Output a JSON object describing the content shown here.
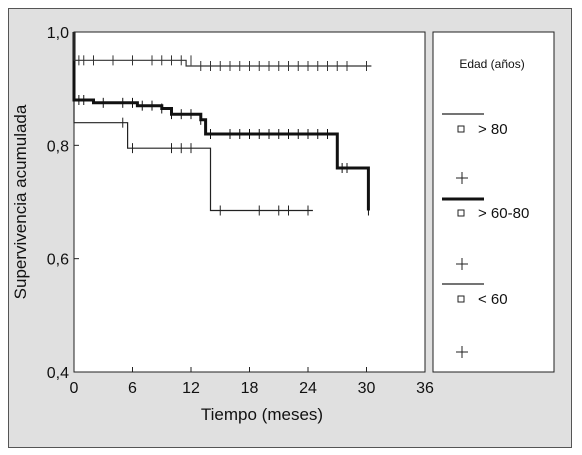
{
  "chart_data": {
    "type": "line",
    "subtype": "kaplan-meier step",
    "title": "",
    "xlabel": "Tiempo (meses)",
    "ylabel": "Supervivencia acumulada",
    "xlim": [
      0,
      36
    ],
    "ylim": [
      0.4,
      1.0
    ],
    "xticks": [
      "0",
      "6",
      "12",
      "18",
      "24",
      "30",
      "36"
    ],
    "yticks": [
      "0,4",
      "0,6",
      "0,8",
      "1,0"
    ],
    "grid": false,
    "legend_position": "right panel",
    "legend_title": "Edad (años)",
    "series": [
      {
        "name": "> 80",
        "color": "#222222",
        "line_weight": "thin",
        "steps": [
          [
            0,
            1.0
          ],
          [
            0,
            0.84
          ],
          [
            5.5,
            0.84
          ],
          [
            5.5,
            0.795
          ],
          [
            14,
            0.795
          ],
          [
            14,
            0.685
          ],
          [
            24.5,
            0.685
          ]
        ],
        "censored_x": [
          5,
          6,
          10,
          11,
          12,
          15,
          19,
          21,
          22,
          24
        ],
        "censored_y": [
          0.84,
          0.795,
          0.795,
          0.795,
          0.795,
          0.685,
          0.685,
          0.685,
          0.685,
          0.685
        ]
      },
      {
        "name": "> 60-80",
        "color": "#111111",
        "line_weight": "thick",
        "steps": [
          [
            0,
            1.0
          ],
          [
            0,
            0.88
          ],
          [
            2,
            0.88
          ],
          [
            2,
            0.875
          ],
          [
            6.5,
            0.875
          ],
          [
            6.5,
            0.87
          ],
          [
            9,
            0.87
          ],
          [
            9,
            0.865
          ],
          [
            10,
            0.865
          ],
          [
            10,
            0.855
          ],
          [
            13,
            0.855
          ],
          [
            13,
            0.845
          ],
          [
            13.5,
            0.845
          ],
          [
            13.5,
            0.82
          ],
          [
            27,
            0.82
          ],
          [
            27,
            0.76
          ],
          [
            30.2,
            0.76
          ],
          [
            30.2,
            0.685
          ]
        ],
        "censored_x": [
          0.5,
          1,
          3,
          5,
          6,
          7,
          8,
          9,
          10,
          11,
          12,
          13,
          14,
          16,
          17,
          18,
          19,
          20,
          21,
          22,
          23,
          24,
          25,
          26,
          27.5,
          28,
          30.2
        ],
        "censored_y": [
          0.88,
          0.88,
          0.875,
          0.875,
          0.875,
          0.87,
          0.87,
          0.865,
          0.855,
          0.855,
          0.855,
          0.845,
          0.82,
          0.82,
          0.82,
          0.82,
          0.82,
          0.82,
          0.82,
          0.82,
          0.82,
          0.82,
          0.82,
          0.82,
          0.76,
          0.76,
          0.685
        ]
      },
      {
        "name": "< 60",
        "color": "#333333",
        "line_weight": "thin",
        "steps": [
          [
            0,
            1.0
          ],
          [
            0,
            0.95
          ],
          [
            11.5,
            0.95
          ],
          [
            11.5,
            0.94
          ],
          [
            30.5,
            0.94
          ]
        ],
        "censored_x": [
          0.5,
          1,
          2,
          4,
          6,
          8,
          9,
          10,
          11,
          12,
          13,
          14,
          15,
          16,
          17,
          18,
          19,
          20,
          21,
          22,
          23,
          24,
          25,
          26,
          27,
          28,
          30
        ],
        "censored_y": [
          0.95,
          0.95,
          0.95,
          0.95,
          0.95,
          0.95,
          0.95,
          0.95,
          0.95,
          0.95,
          0.94,
          0.94,
          0.94,
          0.94,
          0.94,
          0.94,
          0.94,
          0.94,
          0.94,
          0.94,
          0.94,
          0.94,
          0.94,
          0.94,
          0.94,
          0.94,
          0.94
        ]
      }
    ]
  },
  "legend": {
    "title": "Edad (años)",
    "items": [
      {
        "label": "> 80",
        "marker_icon": "square-marker-icon",
        "censor_icon": "plus-icon"
      },
      {
        "label": "> 60-80",
        "marker_icon": "square-marker-icon",
        "censor_icon": "plus-icon"
      },
      {
        "label": "< 60",
        "marker_icon": "square-marker-icon",
        "censor_icon": "plus-icon"
      }
    ]
  }
}
